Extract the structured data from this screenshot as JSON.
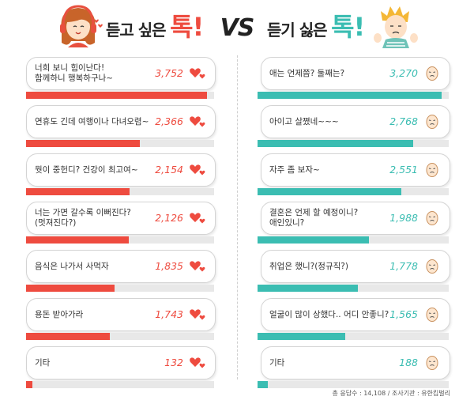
{
  "title_left": {
    "main": "듣고 싶은",
    "accent": "톡!"
  },
  "vs_label": "VS",
  "title_right": {
    "main": "듣기 싫은",
    "accent": "톡!"
  },
  "footer": "총 응답수 : 14,108 / 조사기관 : 유한킴벌리",
  "colors": {
    "left": "#ee4b3f",
    "right": "#3bbdb2",
    "track": "#e8e8e8"
  },
  "icons": {
    "left_item": "heart-icon",
    "right_item": "disgusted-face-icon"
  },
  "chart_data": [
    {
      "type": "bar",
      "orientation": "horizontal",
      "title": "듣고 싶은 톡!",
      "categories": [
        "너희 보니 힘이난다!\n함께하니 행복하구나~",
        "연휴도 긴데 여행이나 다녀오렴~",
        "뭣이 중헌디? 건강이 최고여~",
        "너는 가면 갈수록 이뻐진다?\n(멋져진다?)",
        "음식은 나가서 사먹자",
        "용돈 받아가라",
        "기타"
      ],
      "values": [
        3752,
        2366,
        2154,
        2126,
        1835,
        1743,
        132
      ],
      "value_labels": [
        "3,752",
        "2,366",
        "2,154",
        "2,126",
        "1,835",
        "1,743",
        "132"
      ],
      "xlim": [
        0,
        3900
      ]
    },
    {
      "type": "bar",
      "orientation": "horizontal",
      "title": "듣기 싫은 톡!",
      "categories": [
        "애는 언제쯤? 둘째는?",
        "아이고 살쪘네~~~",
        "자주 좀 보자~",
        "결혼은 언제 할 예정이니?\n애인있니?",
        "취업은 했니?(정규직?)",
        "얼굴이 많이 상했다.. 어디 안좋니?",
        "기타"
      ],
      "values": [
        3270,
        2768,
        2551,
        1988,
        1778,
        1565,
        188
      ],
      "value_labels": [
        "3,270",
        "2,768",
        "2,551",
        "1,988",
        "1,778",
        "1,565",
        "188"
      ],
      "xlim": [
        0,
        3400
      ]
    }
  ]
}
